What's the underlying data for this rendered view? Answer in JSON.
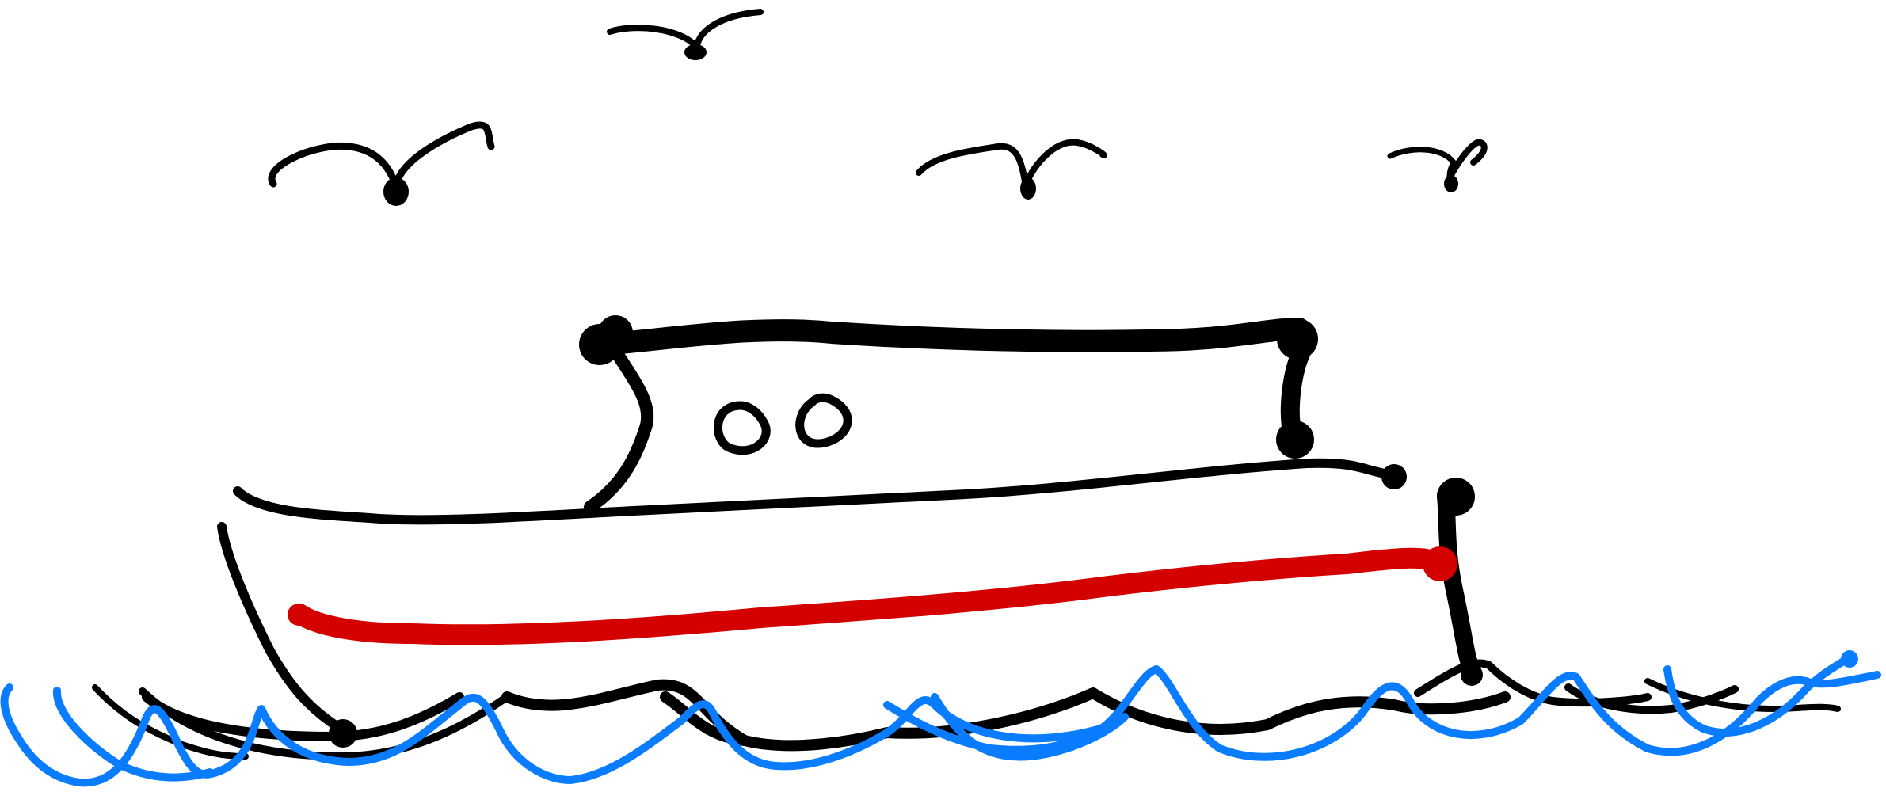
{
  "scene": {
    "subject": "",
    "colors": {
      "background": "#ffffff",
      "outline": "#000000",
      "hull_stripe": "#d40000",
      "water": "#0a7cff"
    },
    "icons": {
      "seagulls": [
        "seagull-icon",
        "seagull-icon",
        "seagull-icon",
        "seagull-icon"
      ],
      "boat": "boat-icon",
      "water": "waves-icon"
    }
  }
}
